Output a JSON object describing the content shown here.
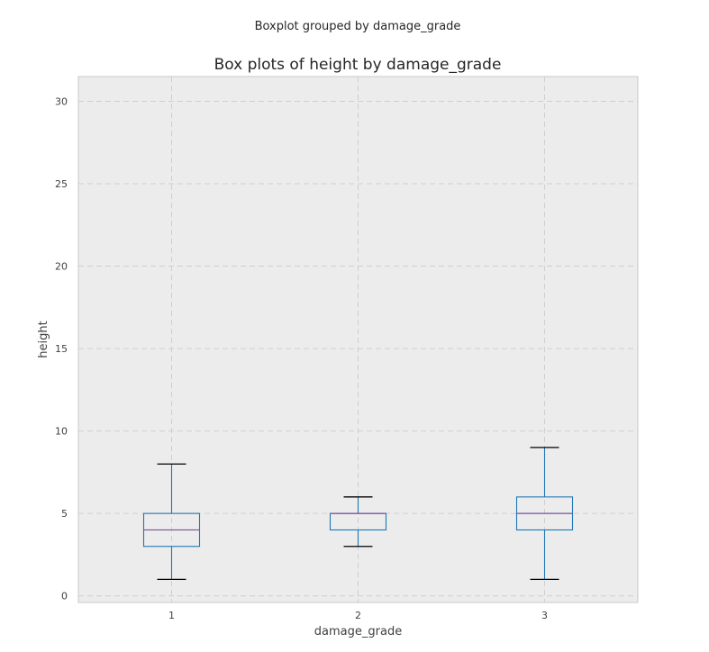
{
  "chart_data": {
    "type": "boxplot",
    "suptitle": "Boxplot grouped by damage_grade",
    "title": "Box plots of height by damage_grade",
    "xlabel": "damage_grade",
    "ylabel": "height",
    "categories": [
      "1",
      "2",
      "3"
    ],
    "ylim": [
      -0.4,
      31.5
    ],
    "yticks": [
      0,
      5,
      10,
      15,
      20,
      25,
      30
    ],
    "grid": true,
    "boxes": [
      {
        "category": "1",
        "whislo": 1,
        "q1": 3,
        "med": 4,
        "q3": 5,
        "whishi": 8
      },
      {
        "category": "2",
        "whislo": 3,
        "q1": 4,
        "med": 5,
        "q3": 5,
        "whishi": 6
      },
      {
        "category": "3",
        "whislo": 1,
        "q1": 4,
        "med": 5,
        "q3": 6,
        "whishi": 9
      }
    ],
    "colors": {
      "box": "#1f77b4",
      "median": "#7b4fa0",
      "cap": "#000000",
      "background": "#ececec"
    }
  }
}
